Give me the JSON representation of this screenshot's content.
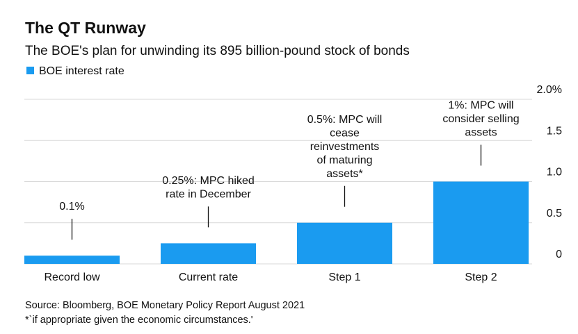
{
  "chart_data": {
    "type": "bar",
    "title": "The QT Runway",
    "subtitle": "The BOE's plan for unwinding its 895 billion-pound stock of bonds",
    "categories": [
      "Record low",
      "Current rate",
      "Step 1",
      "Step 2"
    ],
    "series": [
      {
        "name": "BOE interest rate",
        "color": "#1a9bf0",
        "values": [
          0.1,
          0.25,
          0.5,
          1
        ]
      }
    ],
    "annotations": [
      [
        "0.1%"
      ],
      [
        "0.25%: MPC hiked",
        "rate in December"
      ],
      [
        "0.5%: MPC will",
        "cease",
        "reinvestments",
        "of maturing",
        "assets*"
      ],
      [
        "1%: MPC will",
        "consider selling",
        "assets"
      ]
    ],
    "ylim": [
      0,
      2
    ],
    "yticks": [
      0,
      0.5,
      {
        "value": 1,
        "label": "1.0"
      },
      1.5,
      {
        "value": 2,
        "label": "2.0%"
      }
    ],
    "grid": true,
    "source": "Source: Bloomberg, BOE Monetary Policy Report August 2021",
    "note": "*`if appropriate given the economic circumstances.'"
  }
}
